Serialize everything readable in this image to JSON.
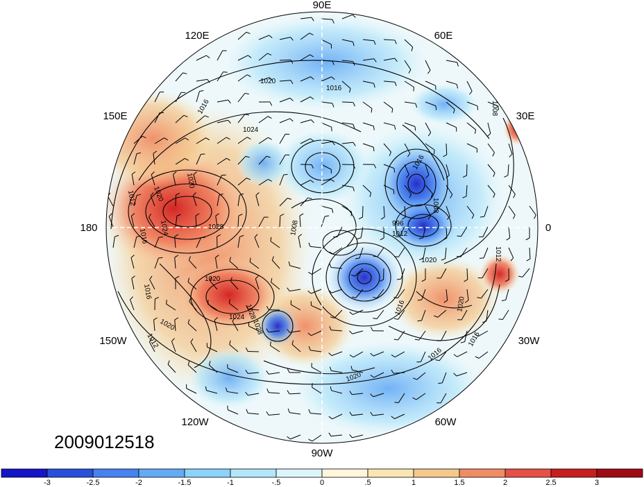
{
  "map": {
    "type": "polar-stereographic",
    "hemisphere": "north",
    "timestamp": "2009012518",
    "longitude_labels": [
      "90E",
      "120E",
      "60E",
      "150E",
      "30E",
      "180",
      "0",
      "150W",
      "30W",
      "120W",
      "60W",
      "90W"
    ],
    "contour_labels": [
      "1016",
      "1016",
      "1020",
      "1024",
      "1020",
      "1016",
      "1012",
      "1020",
      "1028",
      "1024",
      "1020",
      "1028",
      "1016",
      "1024",
      "1028",
      "1020",
      "1012",
      "1008",
      "1008",
      "1008",
      "1012",
      "1020",
      "1016",
      "1020",
      "1016",
      "1016",
      "1020",
      "1012",
      "996",
      "1016"
    ],
    "colors": {
      "strong_negative": "#1414c8",
      "negative": "#5aa0f0",
      "weak_negative": "#b4e6fa",
      "neutral": "#ffffff",
      "weak_positive": "#fae6b4",
      "positive": "#f08c64",
      "strong_positive": "#c81e1e",
      "contour": "#000000"
    }
  },
  "colorbar": {
    "colors": [
      "#1414c8",
      "#2850dc",
      "#4682f0",
      "#64aaf5",
      "#8cd2fa",
      "#b4e6fa",
      "#dcf5fa",
      "#fff5dc",
      "#fae6b4",
      "#f5c88c",
      "#f08c64",
      "#e65046",
      "#c81e1e",
      "#a00a14"
    ],
    "labels": [
      "-3",
      "-2.5",
      "-2",
      "-1.5",
      "-1",
      "-.5",
      "0",
      ".5",
      "1",
      "1.5",
      "2",
      "2.5",
      "3"
    ]
  }
}
